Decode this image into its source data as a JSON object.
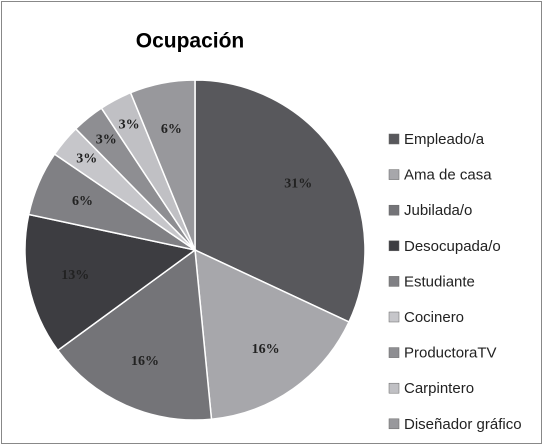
{
  "chart_data": {
    "type": "pie",
    "title": "Ocupación",
    "categories": [
      "Empleado/a",
      "Ama de casa",
      "Jubilada/o",
      "Desocupada/o",
      "Estudiante",
      "Cocinero",
      "ProductoraTV",
      "Carpintero",
      "Diseñador gráfico"
    ],
    "values": [
      31,
      16,
      16,
      13,
      6,
      3,
      3,
      3,
      6
    ],
    "value_labels": [
      "31%",
      "16%",
      "16%",
      "13%",
      "6%",
      "3%",
      "3%",
      "3%",
      "6%"
    ],
    "colors": [
      "#58585c",
      "#a7a7ab",
      "#747478",
      "#3d3d41",
      "#808084",
      "#c6c6ca",
      "#8e8e92",
      "#c0c0c4",
      "#98989c"
    ],
    "legend": "right"
  }
}
